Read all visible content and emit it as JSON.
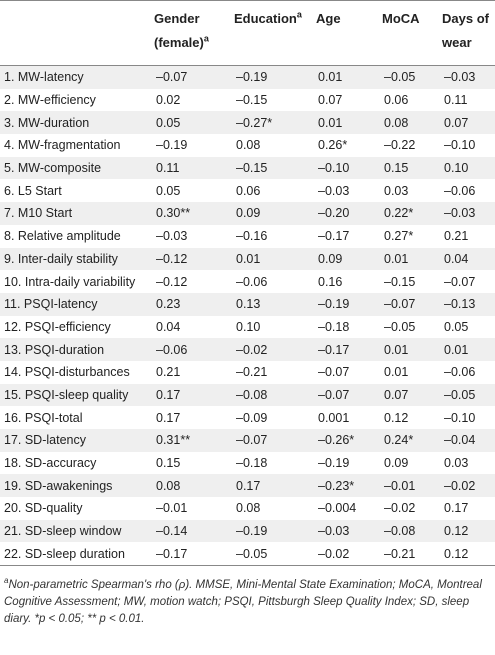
{
  "table": {
    "header": [
      {
        "label": ""
      },
      {
        "label": "Gender (female)",
        "sup": "a"
      },
      {
        "label": "Education",
        "sup": "a"
      },
      {
        "label": "Age"
      },
      {
        "label": "MoCA"
      },
      {
        "label": "Days of wear"
      }
    ],
    "rows": [
      [
        "1. MW-latency",
        "–0.07",
        "–0.19",
        "0.01",
        "–0.05",
        "–0.03"
      ],
      [
        "2. MW-efficiency",
        "0.02",
        "–0.15",
        "0.07",
        "0.06",
        "0.11"
      ],
      [
        "3. MW-duration",
        "0.05",
        "–0.27*",
        "0.01",
        "0.08",
        "0.07"
      ],
      [
        "4. MW-fragmentation",
        "–0.19",
        "0.08",
        "0.26*",
        "–0.22",
        "–0.10"
      ],
      [
        "5. MW-composite",
        "0.11",
        "–0.15",
        "–0.10",
        "0.15",
        "0.10"
      ],
      [
        "6. L5 Start",
        "0.05",
        "0.06",
        "–0.03",
        "0.03",
        "–0.06"
      ],
      [
        "7. M10 Start",
        "0.30**",
        "0.09",
        "–0.20",
        "0.22*",
        "–0.03"
      ],
      [
        "8. Relative amplitude",
        "–0.03",
        "–0.16",
        "–0.17",
        "0.27*",
        "0.21"
      ],
      [
        "9. Inter-daily stability",
        "–0.12",
        "0.01",
        "0.09",
        "0.01",
        "0.04"
      ],
      [
        "10. Intra-daily variability",
        "–0.12",
        "–0.06",
        "0.16",
        "–0.15",
        "–0.07"
      ],
      [
        "11. PSQI-latency",
        "0.23",
        "0.13",
        "–0.19",
        "–0.07",
        "–0.13"
      ],
      [
        "12. PSQI-efficiency",
        "0.04",
        "0.10",
        "–0.18",
        "–0.05",
        "0.05"
      ],
      [
        "13. PSQI-duration",
        "–0.06",
        "–0.02",
        "–0.17",
        "0.01",
        "0.01"
      ],
      [
        "14. PSQI-disturbances",
        "0.21",
        "–0.21",
        "–0.07",
        "0.01",
        "–0.06"
      ],
      [
        "15. PSQI-sleep quality",
        "0.17",
        "–0.08",
        "–0.07",
        "0.07",
        "–0.05"
      ],
      [
        "16. PSQI-total",
        "0.17",
        "–0.09",
        "0.001",
        "0.12",
        "–0.10"
      ],
      [
        "17. SD-latency",
        "0.31**",
        "–0.07",
        "–0.26*",
        "0.24*",
        "–0.04"
      ],
      [
        "18. SD-accuracy",
        "0.15",
        "–0.18",
        "–0.19",
        "0.09",
        "0.03"
      ],
      [
        "19. SD-awakenings",
        "0.08",
        "0.17",
        "–0.23*",
        "–0.01",
        "–0.02"
      ],
      [
        "20. SD-quality",
        "–0.01",
        "0.08",
        "–0.004",
        "–0.02",
        "0.17"
      ],
      [
        "21. SD-sleep window",
        "–0.14",
        "–0.19",
        "–0.03",
        "–0.08",
        "0.12"
      ],
      [
        "22. SD-sleep duration",
        "–0.17",
        "–0.05",
        "–0.02",
        "–0.21",
        "0.12"
      ]
    ],
    "footnote": {
      "sup": "a",
      "text": "Non-parametric Spearman's rho (ρ). MMSE, Mini-Mental State Examination; MoCA, Montreal Cognitive Assessment; MW, motion watch; PSQI, Pittsburgh Sleep Quality Index; SD, sleep diary. *p < 0.05; ** p < 0.01."
    }
  }
}
